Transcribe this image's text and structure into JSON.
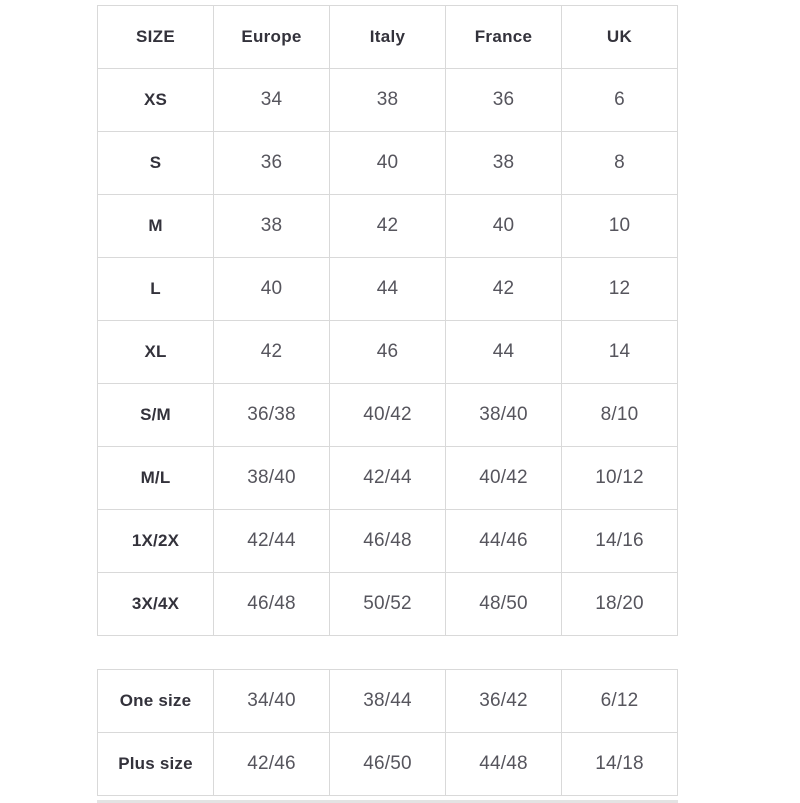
{
  "colors": {
    "background": "#ffffff",
    "border": "#d9d9d9",
    "header_text": "#33323b",
    "cell_text": "#56555d",
    "bottom_bar": "#e3e3e3"
  },
  "chart_data": [
    {
      "type": "table",
      "title": "",
      "columns": [
        "SIZE",
        "Europe",
        "Italy",
        "France",
        "UK"
      ],
      "rows": [
        [
          "XS",
          "34",
          "38",
          "36",
          "6"
        ],
        [
          "S",
          "36",
          "40",
          "38",
          "8"
        ],
        [
          "M",
          "38",
          "42",
          "40",
          "10"
        ],
        [
          "L",
          "40",
          "44",
          "42",
          "12"
        ],
        [
          "XL",
          "42",
          "46",
          "44",
          "14"
        ],
        [
          "S/M",
          "36/38",
          "40/42",
          "38/40",
          "8/10"
        ],
        [
          "M/L",
          "38/40",
          "42/44",
          "40/42",
          "10/12"
        ],
        [
          "1X/2X",
          "42/44",
          "46/48",
          "44/46",
          "14/16"
        ],
        [
          "3X/4X",
          "46/48",
          "50/52",
          "48/50",
          "18/20"
        ]
      ]
    },
    {
      "type": "table",
      "title": "",
      "has_header": false,
      "rows": [
        [
          "One size",
          "34/40",
          "38/44",
          "36/42",
          "6/12"
        ],
        [
          "Plus size",
          "42/46",
          "46/50",
          "44/48",
          "14/18"
        ]
      ]
    }
  ]
}
